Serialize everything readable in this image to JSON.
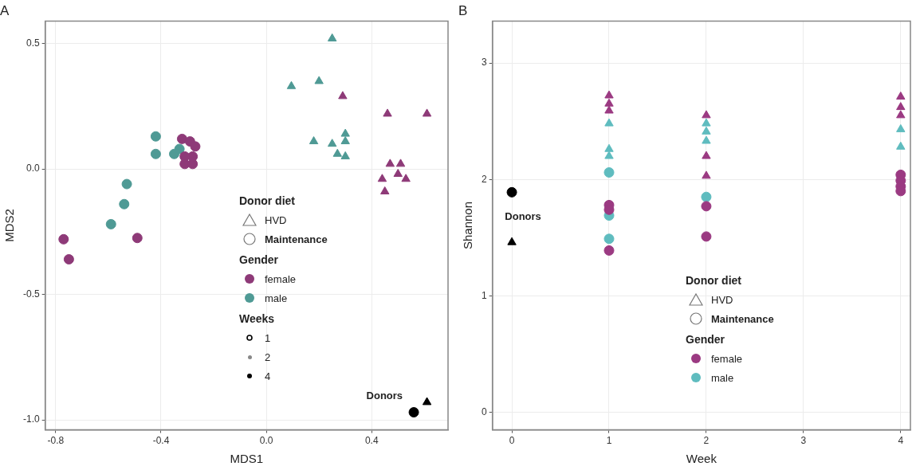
{
  "chart_data": [
    {
      "type": "scatter",
      "title": "A",
      "xlabel": "MDS1",
      "ylabel": "MDS2",
      "xlim": [
        -0.84,
        0.69
      ],
      "ylim": [
        -1.04,
        0.59
      ],
      "xticks": [
        {
          "value": -0.8,
          "label": "-0.8"
        },
        {
          "value": -0.4,
          "label": "-0.4"
        },
        {
          "value": 0,
          "label": "0.0"
        },
        {
          "value": 0.4,
          "label": "0.4"
        }
      ],
      "yticks": [
        {
          "value": -1,
          "label": "-1.0"
        },
        {
          "value": -0.5,
          "label": "-0.5"
        },
        {
          "value": 0,
          "label": "0.0"
        },
        {
          "value": 0.5,
          "label": "0.5"
        }
      ],
      "grid": true,
      "legend": "bottom",
      "legend_title": "Gender",
      "annotations": [
        "Donor diet",
        "HVD",
        "Maintenance",
        "Weeks",
        "1",
        "2",
        "4",
        "Donors"
      ],
      "series": [
        {
          "name": "female",
          "color": "#8e3a78",
          "marker": "triangle",
          "x": [
            0.29,
            0.46,
            0.61,
            0.47,
            0.51,
            0.53,
            0.44,
            0.45,
            0.5
          ],
          "values": [
            0.29,
            0.22,
            0.22,
            0.02,
            0.02,
            -0.04,
            -0.04,
            -0.09,
            -0.02
          ]
        },
        {
          "color": "#8e3a78",
          "marker": "circle",
          "x": [
            -0.77,
            -0.75,
            -0.49,
            -0.32,
            -0.29,
            -0.27,
            -0.31,
            -0.28,
            -0.28,
            -0.31
          ],
          "values": [
            -0.28,
            -0.36,
            -0.275,
            0.12,
            0.11,
            0.09,
            0.02,
            0.02,
            0.05,
            0.05
          ]
        },
        {
          "name": "male",
          "color": "#4f9a95",
          "marker": "triangle",
          "x": [
            0.25,
            0.2,
            0.095,
            0.18,
            0.25,
            0.3,
            0.3,
            0.27,
            0.3
          ],
          "values": [
            0.52,
            0.35,
            0.33,
            0.11,
            0.1,
            0.14,
            0.11,
            0.06,
            0.05
          ]
        },
        {
          "color": "#4f9a95",
          "marker": "circle",
          "x": [
            -0.42,
            -0.42,
            -0.53,
            -0.54,
            -0.59,
            -0.35,
            -0.33
          ],
          "values": [
            0.13,
            0.06,
            -0.06,
            -0.14,
            -0.22,
            0.06,
            0.08
          ]
        },
        {
          "color": "#000000",
          "marker": "triangle",
          "x": [
            0.61
          ],
          "values": [
            -0.93
          ]
        },
        {
          "color": "#000000",
          "marker": "circle",
          "x": [
            0.56
          ],
          "values": [
            -0.97
          ]
        }
      ]
    },
    {
      "type": "scatter",
      "title": "B",
      "xlabel": "Week",
      "ylabel": "Shannon",
      "xlim": [
        -0.2,
        4.1
      ],
      "ylim": [
        -0.15,
        3.36
      ],
      "xticks": [
        0,
        1,
        2,
        3,
        4
      ],
      "yticks": [
        0,
        1,
        2,
        3
      ],
      "grid": true,
      "legend": "bottom",
      "legend_title": "Gender",
      "annotations": [
        "Donor diet",
        "HVD",
        "Maintenance",
        "Donors"
      ],
      "series": [
        {
          "name": "female",
          "color": "#9b3a82",
          "marker": "triangle",
          "x": [
            1,
            1,
            1,
            2,
            2,
            2,
            4,
            4,
            4
          ],
          "values": [
            2.72,
            2.65,
            2.59,
            2.55,
            2.2,
            2.03,
            2.71,
            2.62,
            2.55
          ]
        },
        {
          "color": "#9b3a82",
          "marker": "circle",
          "x": [
            1,
            1,
            1,
            2,
            2,
            4,
            4,
            4,
            4
          ],
          "values": [
            1.78,
            1.74,
            1.39,
            1.77,
            1.51,
            2.04,
            1.99,
            1.94,
            1.9
          ]
        },
        {
          "name": "male",
          "color": "#5fbcbf",
          "marker": "triangle",
          "x": [
            1,
            1,
            1,
            2,
            2,
            2,
            4,
            4
          ],
          "values": [
            2.48,
            2.26,
            2.2,
            2.48,
            2.41,
            2.33,
            2.43,
            2.28
          ]
        },
        {
          "color": "#5fbcbf",
          "marker": "circle",
          "x": [
            1,
            1,
            1,
            2
          ],
          "values": [
            2.06,
            1.69,
            1.49,
            1.85
          ]
        },
        {
          "color": "#000000",
          "marker": "triangle",
          "x": [
            0
          ],
          "values": [
            1.46
          ]
        },
        {
          "color": "#000000",
          "marker": "circle",
          "x": [
            0
          ],
          "values": [
            1.89
          ]
        }
      ]
    }
  ]
}
